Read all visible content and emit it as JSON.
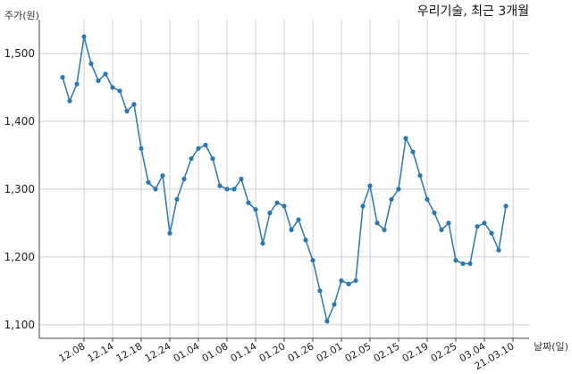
{
  "chart_data": {
    "type": "line",
    "title": "우리기술, 최근 3개월",
    "xlabel": "날짜(일)",
    "ylabel": "주가(원)",
    "ylim": [
      1080,
      1550
    ],
    "yticks": [
      1100,
      1200,
      1300,
      1400,
      1500
    ],
    "ytick_labels": [
      "1,100",
      "1,200",
      "1,300",
      "1,400",
      "1,500"
    ],
    "grid": true,
    "xtick_labels": [
      "12.08",
      "12.14",
      "12.18",
      "12.24",
      "01.04",
      "01.08",
      "01.14",
      "01.20",
      "01.26",
      "02.01",
      "02.05",
      "02.15",
      "02.19",
      "02.25",
      "03.04",
      "21.03.10"
    ],
    "xtick_positions": [
      3,
      7,
      11,
      15,
      19,
      23,
      27,
      31,
      35,
      39,
      43,
      47,
      51,
      55,
      59,
      63
    ],
    "series": [
      {
        "color": "#2878b5",
        "values": [
          1465,
          1430,
          1455,
          1525,
          1485,
          1460,
          1470,
          1450,
          1445,
          1415,
          1425,
          1360,
          1310,
          1300,
          1320,
          1235,
          1285,
          1315,
          1345,
          1360,
          1365,
          1345,
          1305,
          1300,
          1300,
          1315,
          1280,
          1270,
          1220,
          1265,
          1280,
          1275,
          1240,
          1255,
          1225,
          1195,
          1150,
          1105,
          1130,
          1165,
          1160,
          1165,
          1275,
          1305,
          1250,
          1240,
          1285,
          1300,
          1375,
          1355,
          1320,
          1285,
          1265,
          1240,
          1250,
          1195,
          1190,
          1190,
          1245,
          1250,
          1235,
          1210,
          1275
        ]
      }
    ]
  }
}
